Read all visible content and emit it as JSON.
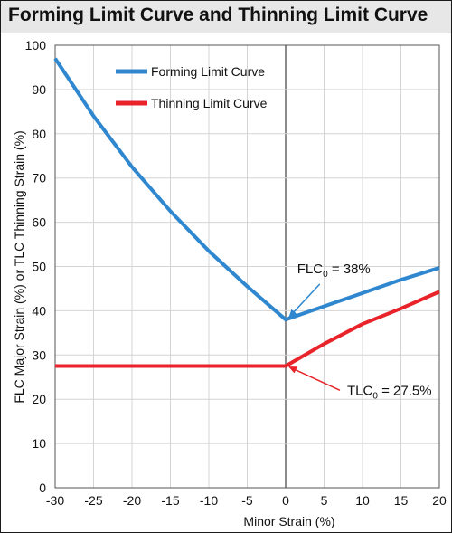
{
  "chart_data": {
    "type": "line",
    "title": "Forming Limit Curve and Thinning Limit Curve",
    "xlabel": "Minor Strain (%)",
    "ylabel": "FLC Major Strain (%) or TLC Thinning Strain (%)",
    "xlim": [
      -30,
      20
    ],
    "ylim": [
      0,
      100
    ],
    "x_ticks": [
      "-30",
      "-25",
      "-20",
      "-15",
      "-10",
      "-5",
      "0",
      "5",
      "10",
      "15",
      "20"
    ],
    "y_ticks": [
      "0",
      "10",
      "20",
      "30",
      "40",
      "50",
      "60",
      "70",
      "80",
      "90",
      "100"
    ],
    "grid": true,
    "legend_position": "top-left",
    "series": [
      {
        "name": "Forming Limit Curve",
        "color": "#2f88cf",
        "x": [
          -30,
          -25,
          -20,
          -15,
          -10,
          -5,
          0,
          5,
          10,
          15,
          20
        ],
        "y": [
          97,
          84,
          72.5,
          62.5,
          53.5,
          45.5,
          38,
          41,
          44,
          47,
          49.7
        ]
      },
      {
        "name": "Thinning Limit Curve",
        "color": "#e8232a",
        "x": [
          -30,
          -25,
          -20,
          -15,
          -10,
          -5,
          0,
          5,
          10,
          15,
          20
        ],
        "y": [
          27.5,
          27.5,
          27.5,
          27.5,
          27.5,
          27.5,
          27.5,
          32.5,
          37,
          40.5,
          44.3
        ]
      }
    ],
    "annotations": [
      {
        "label": "FLC",
        "subscript": "0",
        "text": " = 38%",
        "x": 0,
        "y": 38,
        "text_x": 1.5,
        "text_y": 48.5
      },
      {
        "label": "TLC",
        "subscript": "0",
        "text": " = 27.5%",
        "x": 0,
        "y": 27.5,
        "text_x": 8,
        "text_y": 21
      }
    ]
  }
}
